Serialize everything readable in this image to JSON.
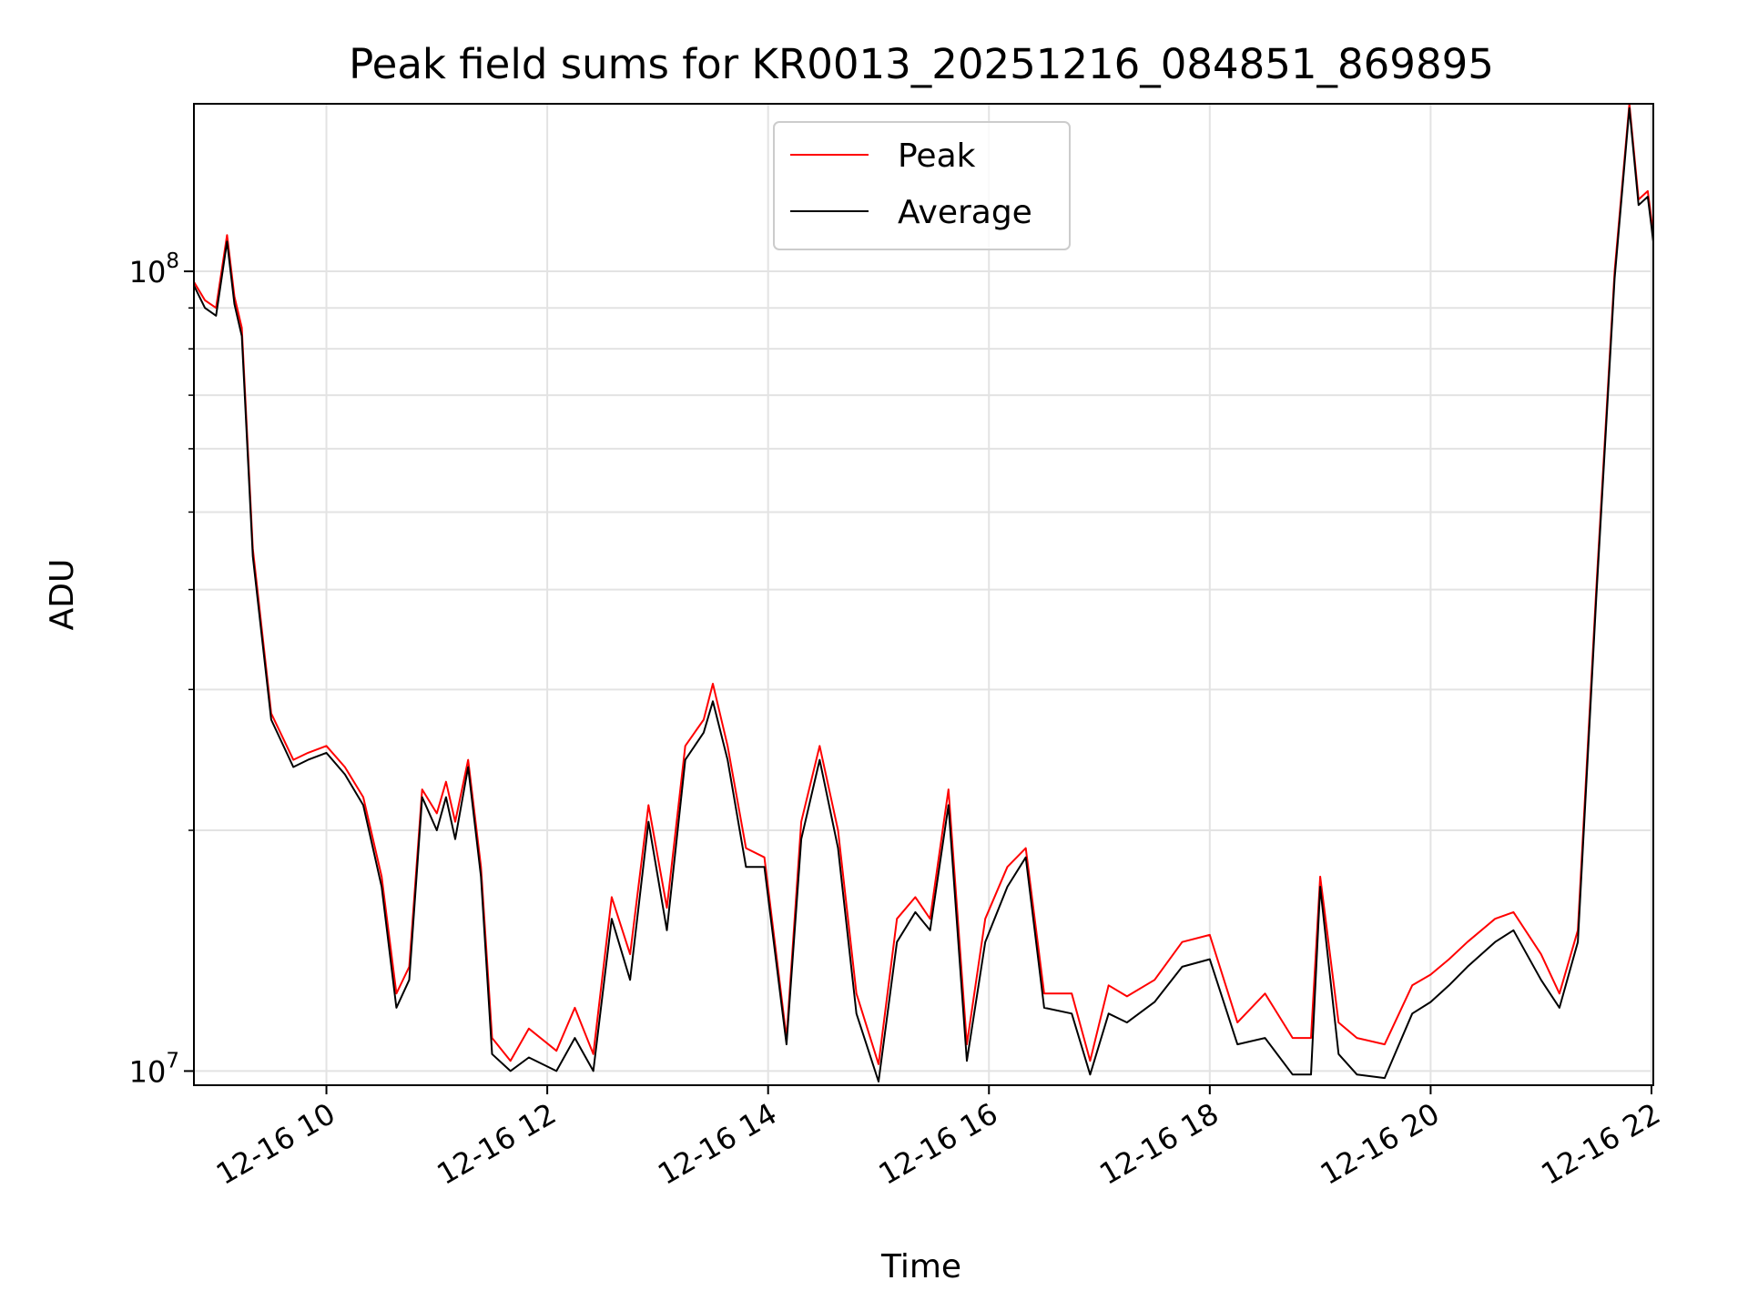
{
  "chart_data": {
    "type": "line",
    "title": "Peak field sums for KR0013_20251216_084851_869895",
    "xlabel": "Time",
    "ylabel": "ADU",
    "yscale": "log",
    "ylim": [
      9600000,
      162000000
    ],
    "xlim": [
      "2025-12-16 08:48",
      "2025-12-16 22:01"
    ],
    "grid": true,
    "legend_position": "top-center",
    "x_ticks": [
      {
        "value": "2025-12-16 10:00",
        "label": "12-16 10"
      },
      {
        "value": "2025-12-16 12:00",
        "label": "12-16 12"
      },
      {
        "value": "2025-12-16 14:00",
        "label": "12-16 14"
      },
      {
        "value": "2025-12-16 16:00",
        "label": "12-16 16"
      },
      {
        "value": "2025-12-16 18:00",
        "label": "12-16 18"
      },
      {
        "value": "2025-12-16 20:00",
        "label": "12-16 20"
      },
      {
        "value": "2025-12-16 22:00",
        "label": "12-16 22"
      }
    ],
    "y_ticks": [
      {
        "value": 10000000,
        "base": "10",
        "exp": "7"
      },
      {
        "value": 100000000,
        "base": "10",
        "exp": "8"
      }
    ],
    "x": [
      "2025-12-16 08:48",
      "2025-12-16 08:54",
      "2025-12-16 09:00",
      "2025-12-16 09:06",
      "2025-12-16 09:10",
      "2025-12-16 09:14",
      "2025-12-16 09:20",
      "2025-12-16 09:30",
      "2025-12-16 09:42",
      "2025-12-16 09:50",
      "2025-12-16 10:00",
      "2025-12-16 10:10",
      "2025-12-16 10:20",
      "2025-12-16 10:30",
      "2025-12-16 10:38",
      "2025-12-16 10:45",
      "2025-12-16 10:52",
      "2025-12-16 11:00",
      "2025-12-16 11:05",
      "2025-12-16 11:10",
      "2025-12-16 11:17",
      "2025-12-16 11:24",
      "2025-12-16 11:30",
      "2025-12-16 11:40",
      "2025-12-16 11:50",
      "2025-12-16 12:05",
      "2025-12-16 12:15",
      "2025-12-16 12:25",
      "2025-12-16 12:35",
      "2025-12-16 12:45",
      "2025-12-16 12:55",
      "2025-12-16 13:05",
      "2025-12-16 13:15",
      "2025-12-16 13:25",
      "2025-12-16 13:30",
      "2025-12-16 13:38",
      "2025-12-16 13:48",
      "2025-12-16 13:58",
      "2025-12-16 14:10",
      "2025-12-16 14:18",
      "2025-12-16 14:28",
      "2025-12-16 14:38",
      "2025-12-16 14:48",
      "2025-12-16 15:00",
      "2025-12-16 15:10",
      "2025-12-16 15:20",
      "2025-12-16 15:28",
      "2025-12-16 15:38",
      "2025-12-16 15:48",
      "2025-12-16 15:58",
      "2025-12-16 16:10",
      "2025-12-16 16:20",
      "2025-12-16 16:30",
      "2025-12-16 16:45",
      "2025-12-16 16:55",
      "2025-12-16 17:05",
      "2025-12-16 17:15",
      "2025-12-16 17:30",
      "2025-12-16 17:45",
      "2025-12-16 18:00",
      "2025-12-16 18:15",
      "2025-12-16 18:30",
      "2025-12-16 18:45",
      "2025-12-16 18:55",
      "2025-12-16 19:00",
      "2025-12-16 19:10",
      "2025-12-16 19:20",
      "2025-12-16 19:35",
      "2025-12-16 19:50",
      "2025-12-16 20:00",
      "2025-12-16 20:10",
      "2025-12-16 20:20",
      "2025-12-16 20:35",
      "2025-12-16 20:45",
      "2025-12-16 21:00",
      "2025-12-16 21:10",
      "2025-12-16 21:20",
      "2025-12-16 21:30",
      "2025-12-16 21:40",
      "2025-12-16 21:48",
      "2025-12-16 21:53",
      "2025-12-16 21:58",
      "2025-12-16 22:01"
    ],
    "series": [
      {
        "name": "Peak",
        "color": "#ff0000",
        "values": [
          97000000,
          92000000,
          90000000,
          111000000,
          93000000,
          85000000,
          45000000,
          28000000,
          24500000,
          25000000,
          25500000,
          24000000,
          22000000,
          17500000,
          12500000,
          13500000,
          22500000,
          21000000,
          23000000,
          20500000,
          24500000,
          18000000,
          11000000,
          10300000,
          11300000,
          10600000,
          12000000,
          10500000,
          16500000,
          14000000,
          21500000,
          16000000,
          25500000,
          27500000,
          30500000,
          25500000,
          19000000,
          18500000,
          11000000,
          20500000,
          25500000,
          20000000,
          12500000,
          10200000,
          15500000,
          16500000,
          15500000,
          22500000,
          10800000,
          15500000,
          18000000,
          19000000,
          12500000,
          12500000,
          10300000,
          12800000,
          12400000,
          13000000,
          14500000,
          14800000,
          11500000,
          12500000,
          11000000,
          11000000,
          17500000,
          11500000,
          11000000,
          10800000,
          12800000,
          13200000,
          13800000,
          14500000,
          15500000,
          15800000,
          14000000,
          12500000,
          15000000,
          40000000,
          100000000,
          162000000,
          123000000,
          126000000,
          111000000
        ]
      },
      {
        "name": "Average",
        "color": "#000000",
        "values": [
          96000000,
          90000000,
          88000000,
          109000000,
          91000000,
          83000000,
          44000000,
          27500000,
          24000000,
          24500000,
          25000000,
          23500000,
          21500000,
          17000000,
          12000000,
          13000000,
          22000000,
          20000000,
          22000000,
          19500000,
          24000000,
          17500000,
          10500000,
          10000000,
          10400000,
          10000000,
          11000000,
          10000000,
          15500000,
          13000000,
          20500000,
          15000000,
          24500000,
          26500000,
          29000000,
          24500000,
          18000000,
          18000000,
          10800000,
          19500000,
          24500000,
          19000000,
          11800000,
          9700000,
          14500000,
          15800000,
          15000000,
          21500000,
          10300000,
          14500000,
          17000000,
          18500000,
          12000000,
          11800000,
          9900000,
          11800000,
          11500000,
          12200000,
          13500000,
          13800000,
          10800000,
          11000000,
          9900000,
          9900000,
          17000000,
          10500000,
          9900000,
          9800000,
          11800000,
          12200000,
          12800000,
          13500000,
          14500000,
          15000000,
          13000000,
          12000000,
          14500000,
          39000000,
          98000000,
          160000000,
          121000000,
          124000000,
          109000000
        ]
      }
    ]
  }
}
